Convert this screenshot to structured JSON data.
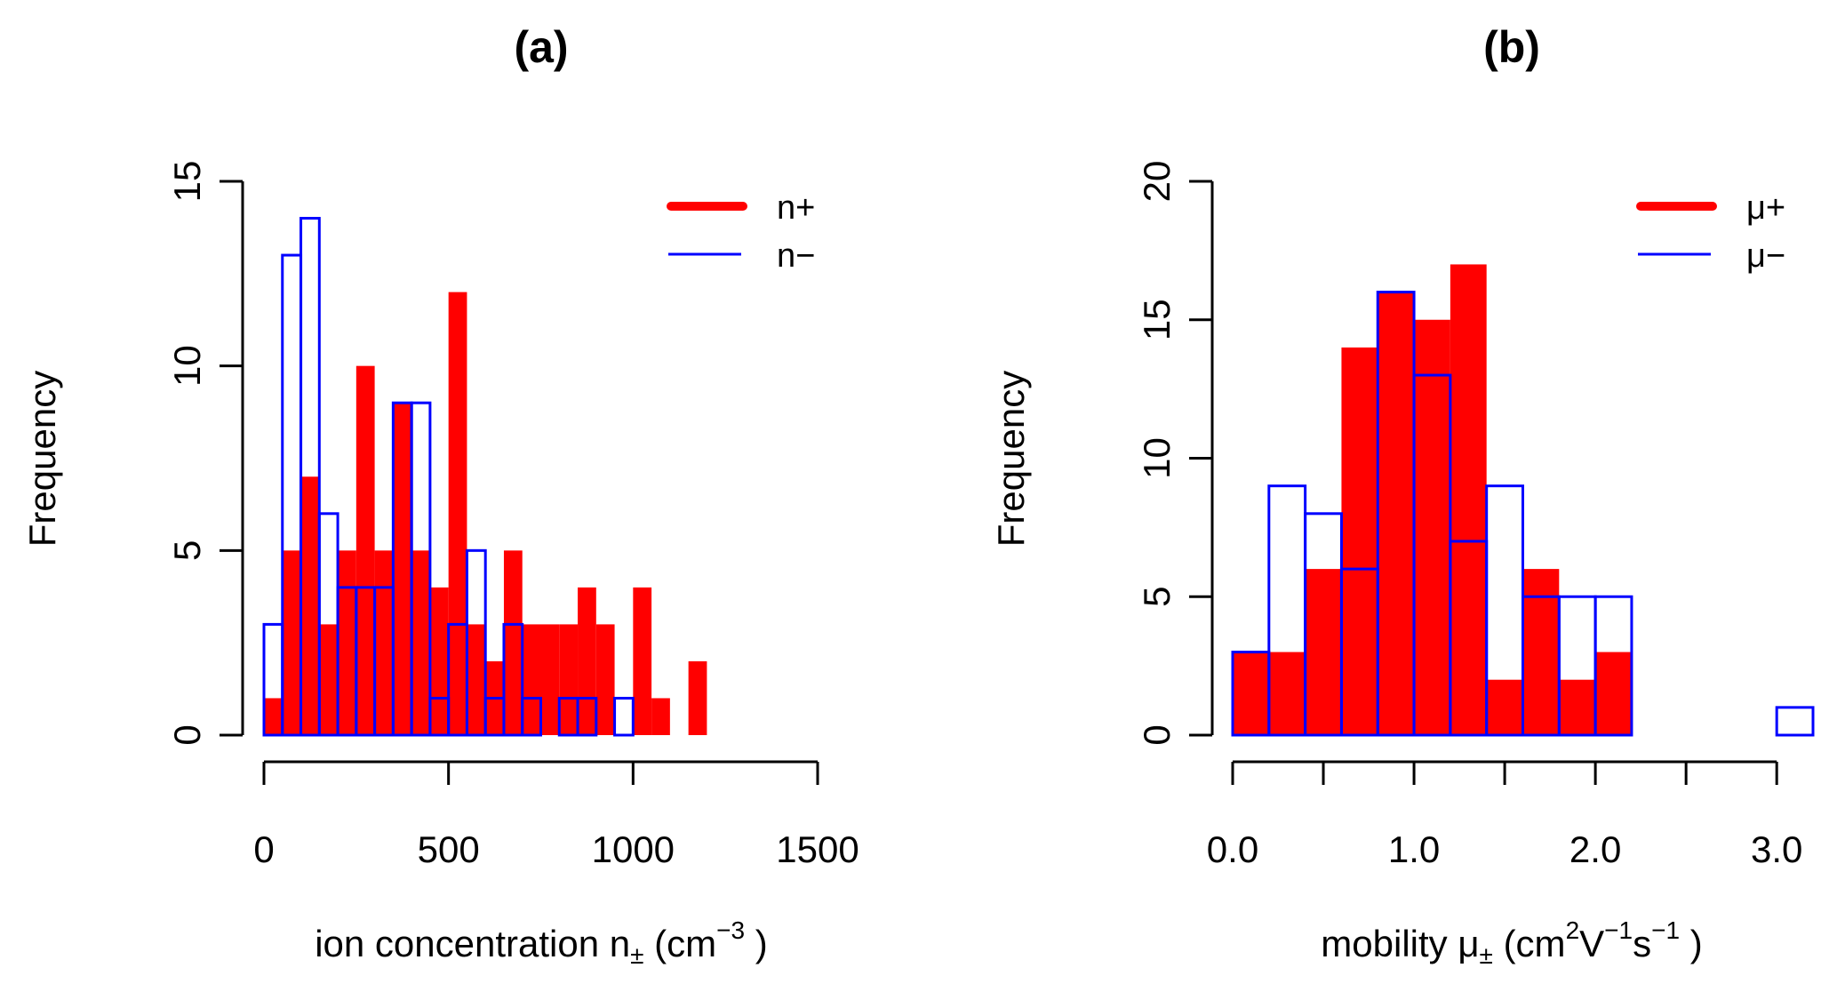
{
  "chart_data": [
    {
      "type": "bar",
      "subtype": "overlaid-histogram",
      "title": "(a)",
      "xlabel": "ion concentration n± (cm⁻³ )",
      "xlabel_parts": {
        "main": "ion concentration n",
        "sub": "±",
        "unit_open": " (cm",
        "sup": "−3",
        "unit_close": " )"
      },
      "ylabel": "Frequency",
      "xlim": [
        0,
        1500
      ],
      "ylim": [
        0,
        15
      ],
      "bin_width": 50,
      "x_ticks": [
        0,
        500,
        1000,
        1500
      ],
      "x_tick_labels": [
        "0",
        "500",
        "1000",
        "1500"
      ],
      "y_ticks": [
        0,
        5,
        10,
        15
      ],
      "y_tick_labels": [
        "0",
        "5",
        "10",
        "15"
      ],
      "grid": false,
      "legend_position": "top-right",
      "series": [
        {
          "name": "n+",
          "style": "filled",
          "color": "#ff0000",
          "bin_starts": [
            0,
            50,
            100,
            150,
            200,
            250,
            300,
            350,
            400,
            450,
            500,
            550,
            600,
            650,
            700,
            750,
            800,
            850,
            900,
            950,
            1000,
            1050,
            1100,
            1150,
            1200,
            1250,
            1300,
            1350,
            1400,
            1450
          ],
          "values": [
            1,
            5,
            7,
            3,
            5,
            10,
            5,
            9,
            5,
            4,
            12,
            3,
            2,
            5,
            3,
            3,
            3,
            4,
            3,
            0,
            4,
            1,
            0,
            2,
            0,
            0,
            0,
            0,
            0,
            0
          ]
        },
        {
          "name": "n−",
          "style": "outline",
          "color": "#0000ff",
          "bin_starts": [
            0,
            50,
            100,
            150,
            200,
            250,
            300,
            350,
            400,
            450,
            500,
            550,
            600,
            650,
            700,
            750,
            800,
            850,
            900,
            950,
            1000,
            1050,
            1100,
            1150,
            1200,
            1250,
            1300,
            1350,
            1400,
            1450
          ],
          "values": [
            3,
            13,
            14,
            6,
            4,
            4,
            4,
            9,
            9,
            1,
            3,
            5,
            1,
            3,
            1,
            0,
            1,
            1,
            0,
            1,
            0,
            0,
            0,
            0,
            0,
            0,
            0,
            0,
            0,
            0
          ]
        }
      ]
    },
    {
      "type": "bar",
      "subtype": "overlaid-histogram",
      "title": "(b)",
      "xlabel": "mobility μ± (cm²V⁻¹s⁻¹ )",
      "xlabel_parts": {
        "main": "mobility μ",
        "sub": "±",
        "unit_open": " (cm",
        "sup1": "2",
        "mid1": "V",
        "sup2": "−1",
        "mid2": "s",
        "sup3": "−1",
        "unit_close": " )"
      },
      "ylabel": "Frequency",
      "xlim": [
        0,
        3.2
      ],
      "ylim": [
        0,
        20
      ],
      "bin_width": 0.2,
      "x_ticks": [
        0,
        0.5,
        1.0,
        1.5,
        2.0,
        2.5,
        3.0
      ],
      "x_tick_labels": [
        "0.0",
        "",
        "1.0",
        "",
        "2.0",
        "",
        "3.0"
      ],
      "y_ticks": [
        0,
        5,
        10,
        15,
        20
      ],
      "y_tick_labels": [
        "0",
        "5",
        "10",
        "15",
        "20"
      ],
      "grid": false,
      "legend_position": "top-right",
      "series": [
        {
          "name": "μ+",
          "style": "filled",
          "color": "#ff0000",
          "bin_starts": [
            0,
            0.2,
            0.4,
            0.6,
            0.8,
            1.0,
            1.2,
            1.4,
            1.6,
            1.8,
            2.0,
            2.2,
            2.4,
            2.6,
            2.8,
            3.0
          ],
          "values": [
            3,
            3,
            6,
            14,
            16,
            15,
            17,
            2,
            6,
            2,
            3,
            0,
            0,
            0,
            0,
            0
          ]
        },
        {
          "name": "μ−",
          "style": "outline",
          "color": "#0000ff",
          "bin_starts": [
            0,
            0.2,
            0.4,
            0.6,
            0.8,
            1.0,
            1.2,
            1.4,
            1.6,
            1.8,
            2.0,
            2.2,
            2.4,
            2.6,
            2.8,
            3.0
          ],
          "values": [
            3,
            9,
            8,
            6,
            16,
            13,
            7,
            9,
            5,
            5,
            5,
            0,
            0,
            0,
            0,
            1
          ]
        }
      ]
    }
  ]
}
